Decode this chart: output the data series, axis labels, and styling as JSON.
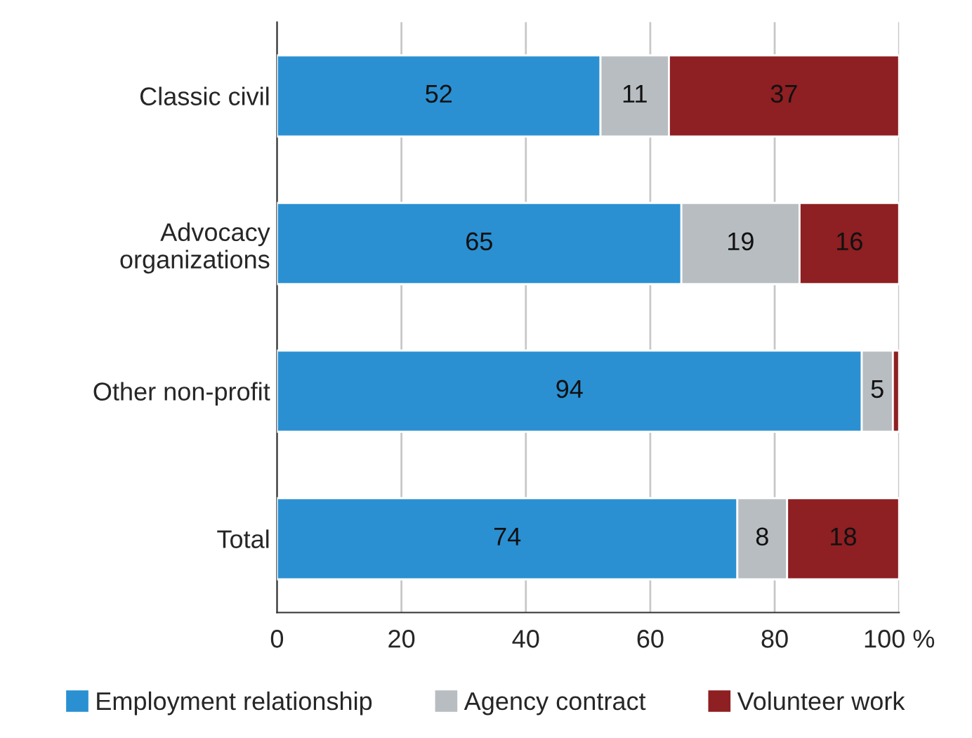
{
  "chart_data": {
    "type": "bar",
    "orientation": "horizontal",
    "stacked": true,
    "categories": [
      "Classic civil",
      "Advocacy\norganizations",
      "Other non-profit",
      "Total"
    ],
    "series": [
      {
        "name": "Employment relationship",
        "color": "#2a90d2",
        "values": [
          52,
          65,
          94,
          74
        ],
        "value_labels": [
          "52",
          "65",
          "94",
          "74"
        ]
      },
      {
        "name": "Agency contract",
        "color": "#b8bdc1",
        "values": [
          11,
          19,
          5,
          8
        ],
        "value_labels": [
          "11",
          "19",
          "5",
          "8"
        ]
      },
      {
        "name": "Volunteer work",
        "color": "#8e1f22",
        "values": [
          37,
          16,
          1,
          18
        ],
        "value_labels": [
          "37",
          "16",
          null,
          "18"
        ]
      }
    ],
    "xlim": [
      0,
      100
    ],
    "xticks": [
      0,
      20,
      40,
      60,
      80,
      {
        "value": 100,
        "label": "100 %"
      }
    ],
    "grid": "x",
    "legend": "bottom"
  }
}
